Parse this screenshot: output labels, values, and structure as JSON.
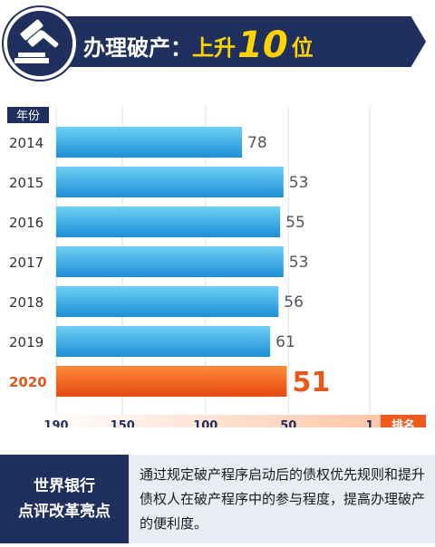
{
  "header": {
    "title_prefix": "办理破产：",
    "title_rise": "上升",
    "title_number": "10",
    "title_suffix": "位"
  },
  "colors": {
    "navy": "#1f2f5e",
    "bar_blue_light": "#55c3ee",
    "bar_blue_dark": "#1b8fd6",
    "bar_orange_light": "#fb8a3a",
    "bar_orange_dark": "#e84a12",
    "highlight_yellow": "#ffd400"
  },
  "chart_data": {
    "type": "bar",
    "orientation": "horizontal",
    "column_header": "年份",
    "categories": [
      "2014",
      "2015",
      "2016",
      "2017",
      "2018",
      "2019",
      "2020"
    ],
    "values": [
      78,
      53,
      55,
      53,
      56,
      61,
      51
    ],
    "highlight_category": "2020",
    "axis_label": "排名",
    "axis_ticks": [
      "190",
      "150",
      "100",
      "50",
      "1"
    ],
    "xlim": [
      190,
      1
    ],
    "grid": true
  },
  "panel": {
    "title_lines": [
      "世界银行",
      "点评改革亮点"
    ],
    "text": "通过规定破产程序启动后的债权优先规则和提升债权人在破产程序中的参与程度，提高办理破产的便利度。"
  }
}
